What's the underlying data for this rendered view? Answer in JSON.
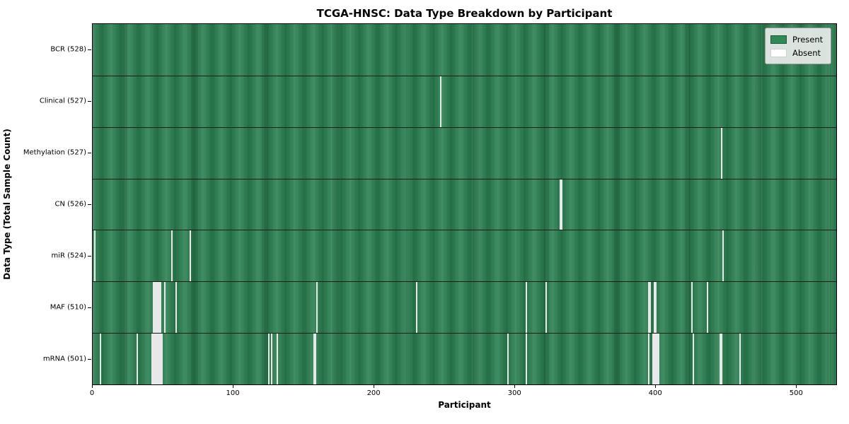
{
  "title": "TCGA-HNSC: Data Type Breakdown by Participant",
  "xlabel": "Participant",
  "ylabel": "Data Type (Total Sample Count)",
  "legend": {
    "present_label": "Present",
    "absent_label": "Absent"
  },
  "colors": {
    "present": "#2e8b57",
    "present_edge": "#1e6240",
    "absent": "#ffffff"
  },
  "x_ticks": [
    0,
    100,
    200,
    300,
    400,
    500
  ],
  "n_participants": 528,
  "chart_data": {
    "type": "heatmap",
    "title": "TCGA-HNSC: Data Type Breakdown by Participant",
    "xlabel": "Participant",
    "ylabel": "Data Type (Total Sample Count)",
    "xlim": [
      0,
      529
    ],
    "grid": false,
    "legend_position": "upper right",
    "legend_entries": [
      "Present",
      "Absent"
    ],
    "rows": [
      {
        "name": "BCR",
        "label": "BCR (528)",
        "present_count": 528,
        "absent_participants": []
      },
      {
        "name": "Clinical",
        "label": "Clinical (527)",
        "present_count": 527,
        "absent_participants": [
          247
        ]
      },
      {
        "name": "Methylation",
        "label": "Methylation (527)",
        "present_count": 527,
        "absent_participants": [
          447
        ]
      },
      {
        "name": "CN",
        "label": "CN (526)",
        "present_count": 526,
        "absent_participants": [
          332,
          333
        ]
      },
      {
        "name": "miR",
        "label": "miR (524)",
        "present_count": 524,
        "absent_participants": [
          1,
          56,
          69,
          448
        ]
      },
      {
        "name": "MAF",
        "label": "MAF (510)",
        "present_count": 510,
        "absent_participants": [
          43,
          44,
          45,
          46,
          47,
          48,
          51,
          59,
          159,
          230,
          308,
          322,
          395,
          396,
          399,
          400,
          426,
          437
        ]
      },
      {
        "name": "mRNA",
        "label": "mRNA (501)",
        "present_count": 501,
        "absent_participants": [
          5,
          31,
          42,
          43,
          44,
          45,
          46,
          47,
          48,
          49,
          125,
          127,
          131,
          157,
          158,
          295,
          308,
          395,
          398,
          399,
          400,
          401,
          402,
          427,
          446,
          447,
          460
        ]
      }
    ]
  }
}
